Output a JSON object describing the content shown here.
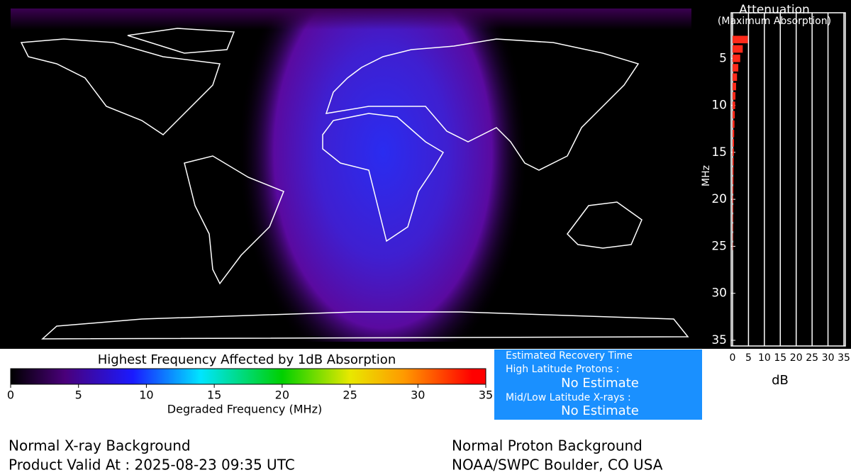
{
  "chart_data": [
    {
      "type": "bar",
      "orientation": "horizontal",
      "title": "Attenuation",
      "subtitle": "(Maximum Absorption)",
      "ylabel": "MHz",
      "xlabel": "dB",
      "x": [
        3,
        4,
        5,
        6,
        7,
        8,
        9,
        10,
        11,
        12,
        13,
        14,
        15,
        16,
        17,
        18,
        19,
        20,
        21,
        22,
        23,
        24,
        25
      ],
      "values": [
        4.8,
        3.2,
        2.4,
        1.8,
        1.4,
        1.1,
        0.9,
        0.8,
        0.7,
        0.6,
        0.5,
        0.45,
        0.4,
        0.35,
        0.3,
        0.28,
        0.25,
        0.22,
        0.2,
        0.18,
        0.16,
        0.14,
        0.12
      ],
      "color": "#ff2a1a",
      "ylim": [
        0,
        35
      ],
      "yticks": [
        5,
        10,
        15,
        20,
        25,
        30,
        35
      ],
      "xlim": [
        0,
        35
      ],
      "xticks": [
        0,
        5,
        10,
        15,
        20,
        25,
        30,
        35
      ],
      "grid": true
    },
    {
      "type": "colorbar",
      "title": "Highest Frequency Affected by 1dB Absorption",
      "xlabel": "Degraded Frequency (MHz)",
      "xlim": [
        0,
        35
      ],
      "xticks": [
        0,
        5,
        10,
        15,
        20,
        25,
        30,
        35
      ],
      "colorscale": [
        [
          0,
          "#000000"
        ],
        [
          4,
          "#4a007a"
        ],
        [
          9,
          "#1a1aff"
        ],
        [
          14,
          "#00e5ff"
        ],
        [
          20,
          "#00d000"
        ],
        [
          25,
          "#e8e800"
        ],
        [
          29,
          "#ff9900"
        ],
        [
          34,
          "#ff0000"
        ]
      ]
    }
  ],
  "recovery": {
    "title": "Estimated Recovery Time",
    "rows": [
      [
        "High Latitude Protons :",
        "No Estimate"
      ],
      [
        "Mid/Low Latitude X-rays :",
        "No Estimate"
      ]
    ]
  },
  "footer": {
    "left": [
      "Normal X-ray Background",
      "Product Valid At : 2025-08-23 09:35 UTC"
    ],
    "right": [
      "Normal Proton Background",
      "NOAA/SWPC Boulder, CO USA"
    ]
  }
}
